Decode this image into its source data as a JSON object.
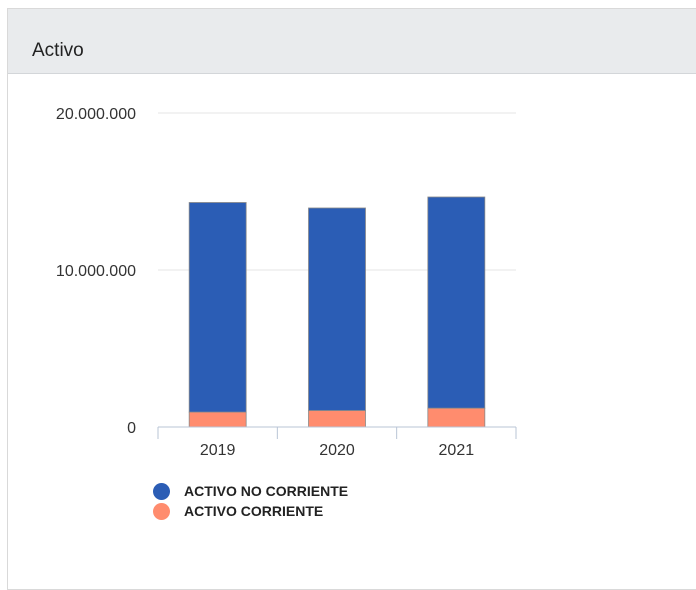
{
  "panel": {
    "title": "Activo"
  },
  "chart_data": {
    "type": "bar",
    "stacked": true,
    "categories": [
      "2019",
      "2020",
      "2021"
    ],
    "series": [
      {
        "name": "ACTIVO CORRIENTE",
        "color": "#ff8c6e",
        "values": [
          950000,
          1050000,
          1200000
        ]
      },
      {
        "name": "ACTIVO NO CORRIENTE",
        "color": "#2b5db5",
        "values": [
          13350000,
          12900000,
          13450000
        ]
      }
    ],
    "y_ticks": [
      0,
      10000000,
      20000000
    ],
    "y_tick_labels": [
      "0",
      "10.000.000",
      "20.000.000"
    ],
    "ylim": [
      0,
      20000000
    ],
    "grid": true,
    "legend_position": "bottom-left"
  },
  "legend": {
    "items": [
      {
        "label": "ACTIVO NO CORRIENTE",
        "color": "#2b5db5"
      },
      {
        "label": "ACTIVO CORRIENTE",
        "color": "#ff8c6e"
      }
    ]
  }
}
